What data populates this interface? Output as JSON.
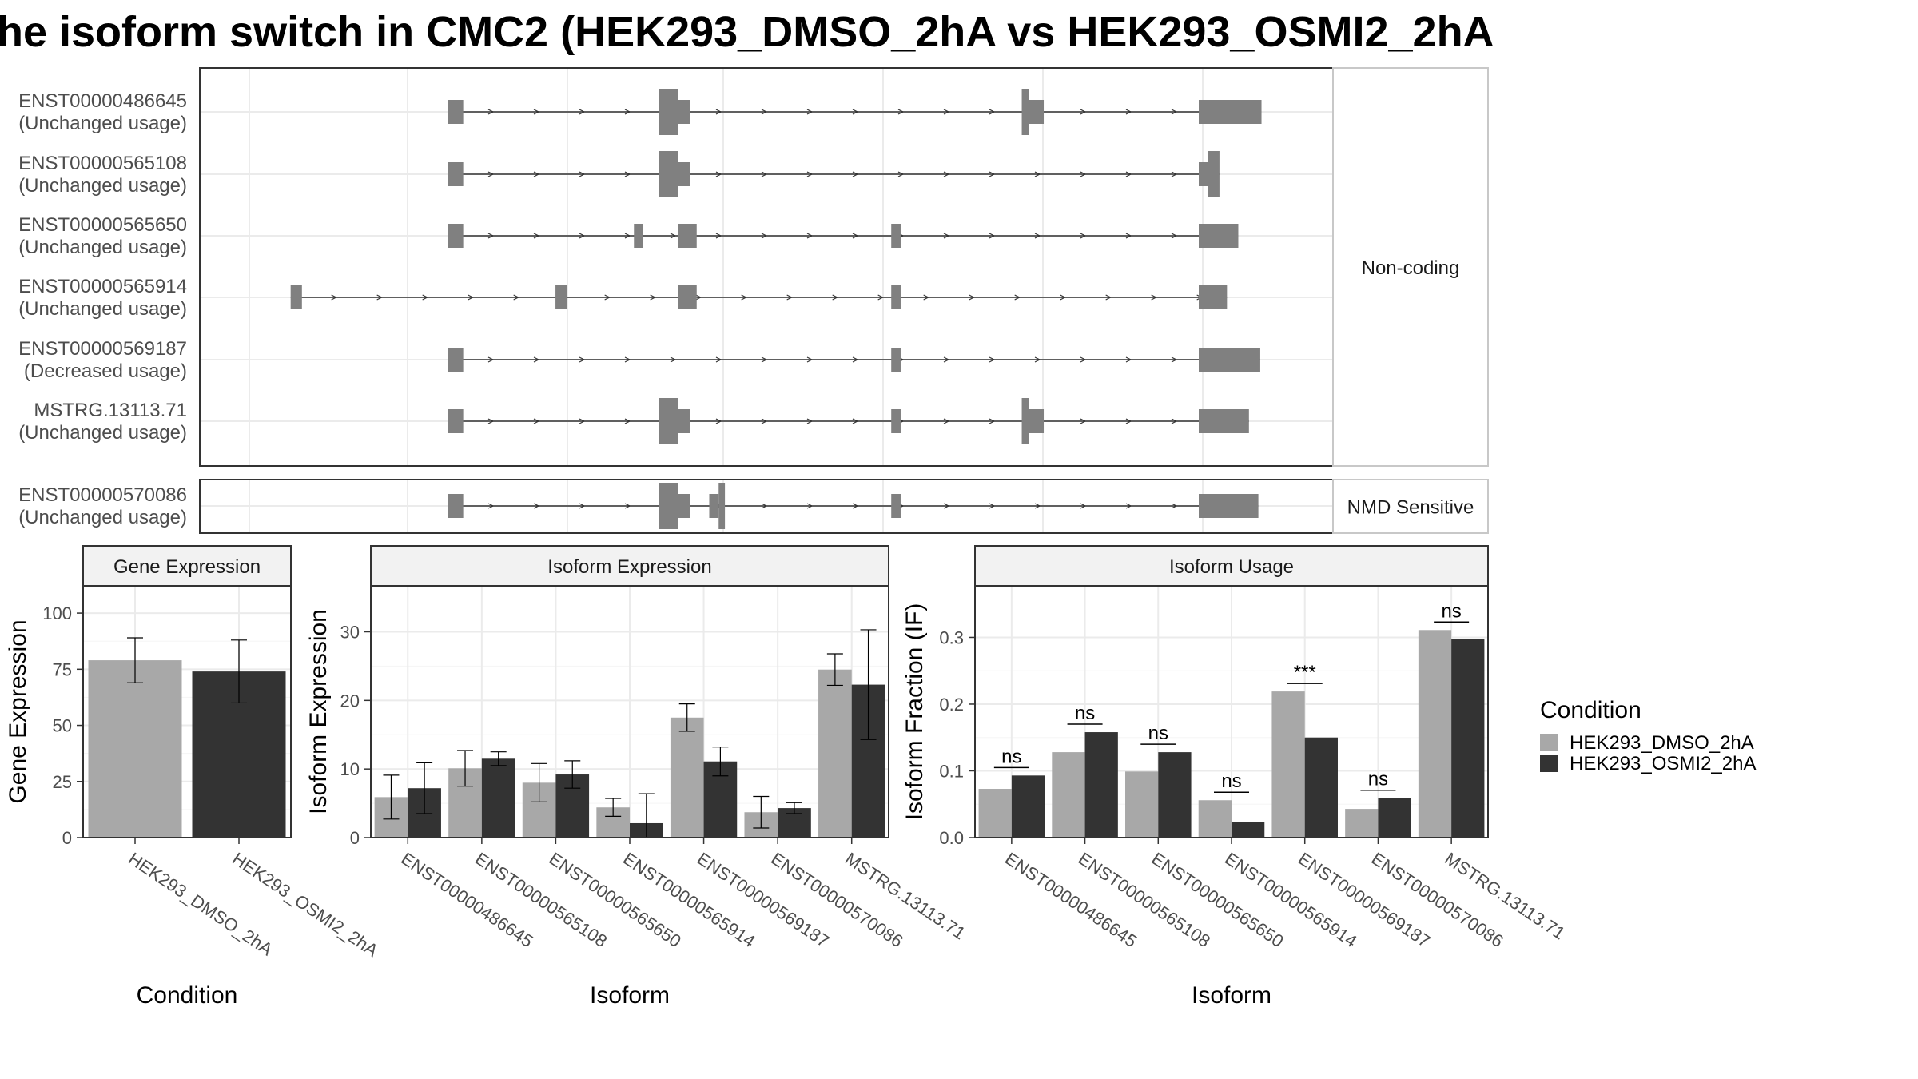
{
  "title": "he isoform switch in CMC2 (HEK293_DMSO_2hA vs HEK293_OSMI2_2hA",
  "colors": {
    "exon": "#808080",
    "intron": "#333333",
    "dmso": "#a8a8a8",
    "osmi2": "#333333",
    "grid_major": "#ebebeb",
    "grid_minor": "#f5f5f5",
    "strip_fill": "#f2f2f2",
    "panel_border": "#333333"
  },
  "legend": {
    "title": "Condition",
    "items": [
      {
        "label": "HEK293_DMSO_2hA",
        "color": "#a8a8a8"
      },
      {
        "label": "HEK293_OSMI2_2hA",
        "color": "#333333"
      }
    ]
  },
  "chart_data": [
    {
      "type": "gene-structure",
      "facets": [
        {
          "label": "Non-coding",
          "transcripts": [
            {
              "id": "ENST00000486645",
              "usage": "(Unchanged usage)"
            },
            {
              "id": "ENST00000565108",
              "usage": "(Unchanged usage)"
            },
            {
              "id": "ENST00000565650",
              "usage": "(Unchanged usage)"
            },
            {
              "id": "ENST00000565914",
              "usage": "(Unchanged usage)"
            },
            {
              "id": "ENST00000569187",
              "usage": "(Decreased usage)"
            },
            {
              "id": "MSTRG.13113.71",
              "usage": "(Unchanged usage)"
            }
          ]
        },
        {
          "label": "NMD Sensitive",
          "transcripts": [
            {
              "id": "ENST00000570086",
              "usage": "(Unchanged usage)"
            }
          ]
        }
      ]
    },
    {
      "type": "bar",
      "title": "Gene Expression",
      "xlabel": "Condition",
      "ylabel": "Gene Expression",
      "ylim": [
        0,
        110
      ],
      "yticks": [
        0,
        25,
        50,
        75,
        100
      ],
      "categories": [
        "HEK293_DMSO_2hA",
        "HEK293_OSMI2_2hA"
      ],
      "series": [
        {
          "name": "HEK293_DMSO_2hA",
          "values": [
            79,
            null
          ],
          "errors": [
            10,
            null
          ]
        },
        {
          "name": "HEK293_OSMI2_2hA",
          "values": [
            null,
            74
          ],
          "errors": [
            null,
            14
          ]
        }
      ]
    },
    {
      "type": "bar",
      "title": "Isoform Expression",
      "xlabel": "Isoform",
      "ylabel": "Isoform Expression",
      "ylim": [
        0,
        36
      ],
      "yticks": [
        0,
        10,
        20,
        30
      ],
      "categories": [
        "ENST00000486645",
        "ENST00000565108",
        "ENST00000565650",
        "ENST00000565914",
        "ENST00000569187",
        "ENST00000570086",
        "MSTRG.13113.71"
      ],
      "series": [
        {
          "name": "HEK293_DMSO_2hA",
          "values": [
            5.9,
            10.1,
            8.0,
            4.4,
            17.5,
            3.7,
            24.5
          ],
          "errors": [
            3.2,
            2.6,
            2.8,
            1.3,
            2.0,
            2.3,
            2.3
          ]
        },
        {
          "name": "HEK293_OSMI2_2hA",
          "values": [
            7.2,
            11.5,
            9.2,
            2.1,
            11.1,
            4.3,
            22.3
          ],
          "errors": [
            3.7,
            1.0,
            2.0,
            4.3,
            2.1,
            0.8,
            8.0
          ]
        }
      ]
    },
    {
      "type": "bar",
      "title": "Isoform Usage",
      "xlabel": "Isoform",
      "ylabel": "Isoform Fraction (IF)",
      "ylim": [
        0,
        0.37
      ],
      "yticks": [
        "0.0",
        "0.1",
        "0.2",
        "0.3"
      ],
      "categories": [
        "ENST00000486645",
        "ENST00000565108",
        "ENST00000565650",
        "ENST00000565914",
        "ENST00000569187",
        "ENST00000570086",
        "MSTRG.13113.71"
      ],
      "series": [
        {
          "name": "HEK293_DMSO_2hA",
          "values": [
            0.073,
            0.128,
            0.099,
            0.056,
            0.219,
            0.043,
            0.311
          ]
        },
        {
          "name": "HEK293_OSMI2_2hA",
          "values": [
            0.093,
            0.158,
            0.128,
            0.023,
            0.15,
            0.059,
            0.298
          ]
        }
      ],
      "significance": [
        "ns",
        "ns",
        "ns",
        "ns",
        "***",
        "ns",
        "ns"
      ]
    }
  ]
}
